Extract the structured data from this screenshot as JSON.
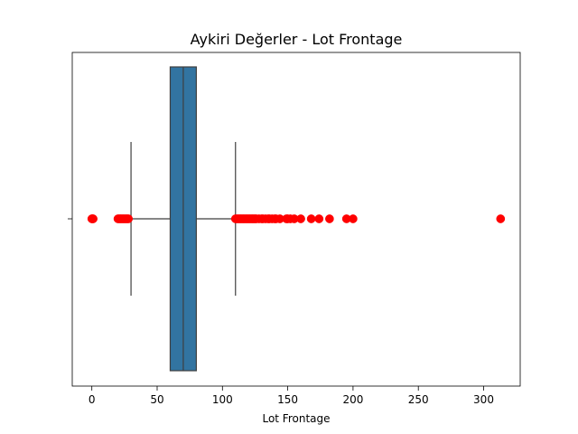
{
  "chart_data": {
    "type": "boxplot",
    "orientation": "horizontal",
    "title": "Aykiri Değerler - Lot Frontage",
    "xlabel": "Lot Frontage",
    "ylabel": "",
    "xlim": [
      -15,
      328
    ],
    "xticks": [
      0,
      50,
      100,
      150,
      200,
      250,
      300
    ],
    "grid": false,
    "box": {
      "whisker_low": 30,
      "q1": 60,
      "median": 70,
      "q3": 80,
      "whisker_high": 110,
      "color": "#3274a1"
    },
    "outliers": [
      0,
      0.5,
      1,
      20,
      21,
      22,
      23,
      24,
      25,
      26,
      27,
      28,
      110,
      111,
      112,
      113,
      114,
      115,
      116,
      117,
      118,
      119,
      120,
      121,
      122,
      123,
      124,
      125,
      126,
      128,
      130,
      131,
      133,
      135,
      136,
      138,
      140,
      141,
      144,
      149,
      150,
      152,
      155,
      160,
      168,
      174,
      182,
      195,
      200,
      313
    ],
    "outlier_color": "#ff0000",
    "line_color": "#3f3f3f"
  }
}
